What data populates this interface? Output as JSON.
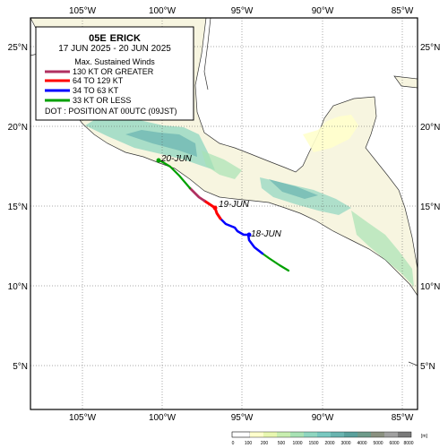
{
  "map": {
    "storm_id": "05E",
    "storm_name": "ERICK",
    "period": "17 JUN 2025 - 20 JUN 2025",
    "legend": {
      "heading": "Max. Sustained Winds",
      "categories": [
        {
          "label": "130 KT OR GREATER",
          "color": "#b03060"
        },
        {
          "label": "64 TO 129 KT",
          "color": "#ff0000"
        },
        {
          "label": "34 TO 63 KT",
          "color": "#0000ff"
        },
        {
          "label": "33 KT OR LESS",
          "color": "#00a000"
        }
      ],
      "dot_note": "DOT : POSITION AT 00UTC (09JST)"
    },
    "lon_ticks": [
      "105°W",
      "100°W",
      "95°W",
      "90°W",
      "85°W"
    ],
    "lat_ticks": [
      "25°N",
      "20°N",
      "15°N",
      "10°N",
      "5°N"
    ],
    "date_labels": [
      "20-JUN",
      "19-JUN",
      "18-JUN"
    ],
    "elevation_scale": {
      "values": [
        "0",
        "100",
        "200",
        "500",
        "1000",
        "1500",
        "2000",
        "3000",
        "4000",
        "5000",
        "6000",
        "8000"
      ],
      "unit": "[m]",
      "colors": [
        "#ffffff",
        "#ffffcc",
        "#e8f7b0",
        "#c8eeb0",
        "#a8e2b4",
        "#8fd6c0",
        "#79c8c0",
        "#6ab4b0",
        "#5aa09c",
        "#6e9a8a",
        "#8a9080",
        "#a0a0a0"
      ]
    },
    "track": {
      "colors": {
        "130+": "#b03060",
        "64-129": "#ff0000",
        "34-63": "#0000ff",
        "le33": "#00a000"
      }
    }
  }
}
